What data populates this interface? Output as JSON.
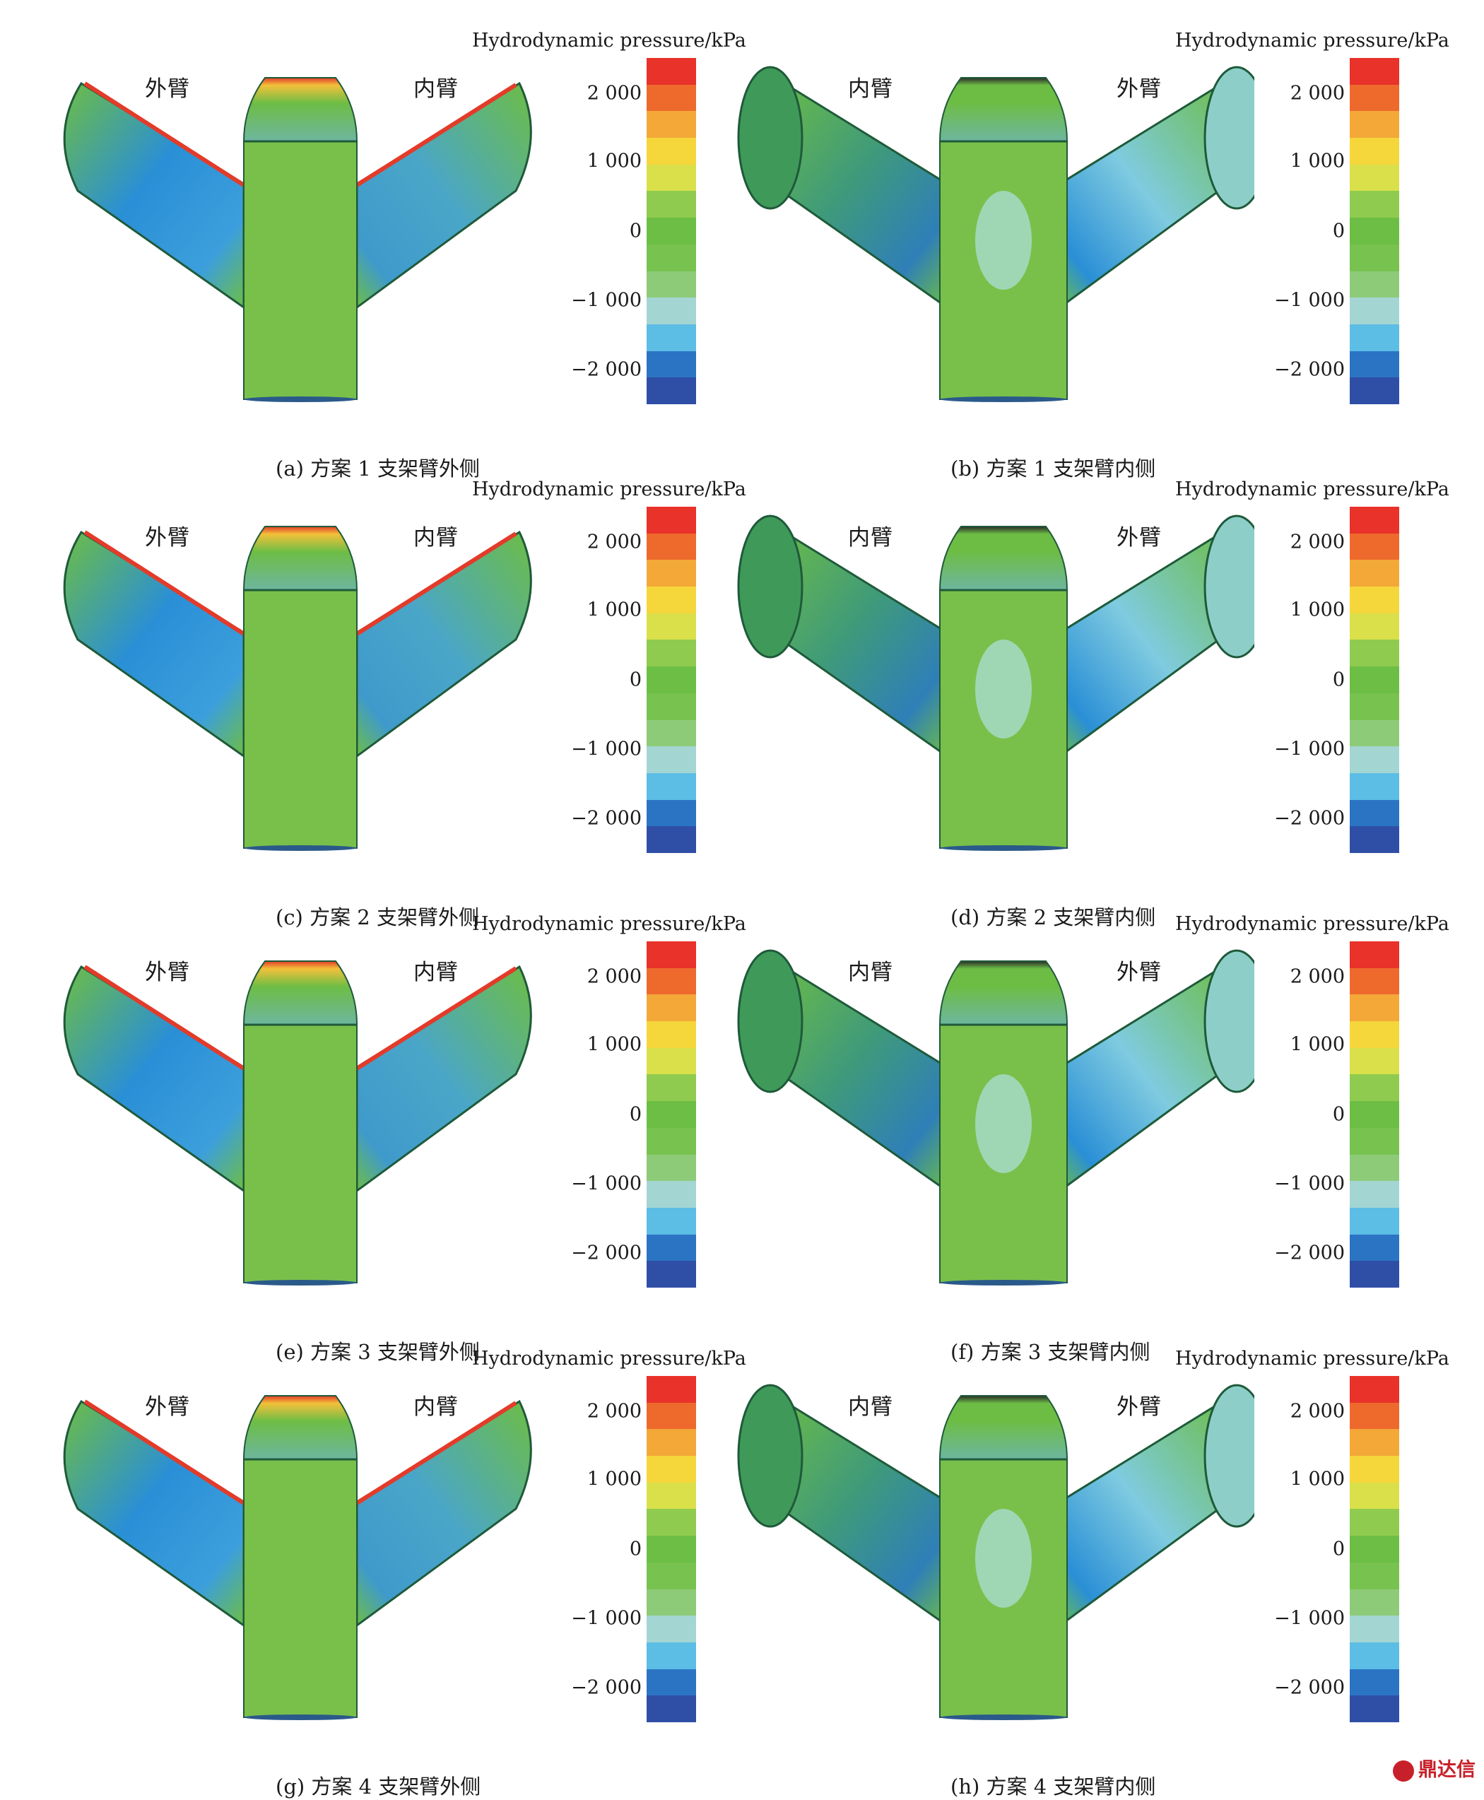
{
  "legend_title": "Hydrodynamic pressure/kPa",
  "ticks": [
    "2 000",
    "1 000",
    "0",
    "−1 000",
    "−2 000"
  ],
  "arm_labels": {
    "outer": "外臂",
    "inner": "内臂"
  },
  "colormap": [
    "#e8322a",
    "#ee6a2c",
    "#f3a838",
    "#f5d63b",
    "#d9e04a",
    "#8fcb4e",
    "#6cbe45",
    "#78c250",
    "#8ecb79",
    "#a3d6d3",
    "#5cbde5",
    "#2b74c4",
    "#2f4fa6"
  ],
  "colors": {
    "surface": "#6dbd45",
    "outline": "#1f5a3a",
    "low": "#2a8fd6",
    "deep": "#1f4a9c",
    "high": "#e33b2a"
  },
  "panels": [
    {
      "caption": "(a) 方案 1 支架臂外侧",
      "view": "outer"
    },
    {
      "caption": "(b) 方案 1 支架臂内侧",
      "view": "inner"
    },
    {
      "caption": "(c) 方案 2 支架臂外侧",
      "view": "outer"
    },
    {
      "caption": "(d) 方案 2 支架臂内侧",
      "view": "inner"
    },
    {
      "caption": "(e) 方案 3 支架臂外侧",
      "view": "outer"
    },
    {
      "caption": "(f) 方案 3 支架臂内侧",
      "view": "inner"
    },
    {
      "caption": "(g) 方案 4 支架臂外侧",
      "view": "outer"
    },
    {
      "caption": "(h) 方案 4 支架臂内侧",
      "view": "inner"
    }
  ],
  "watermark": "鼎达信"
}
